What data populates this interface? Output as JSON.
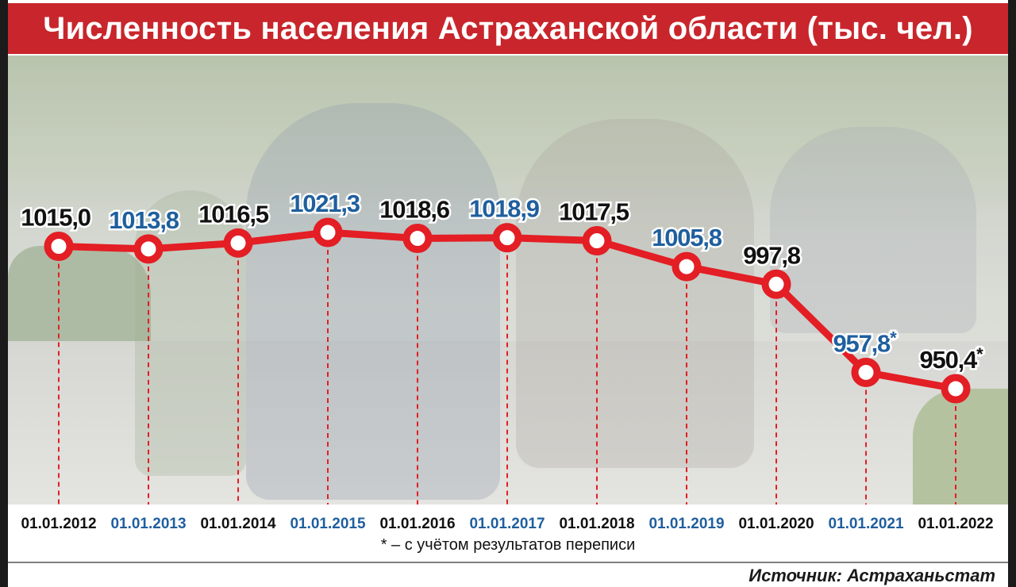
{
  "title": "Численность населения Астраханской области (тыс. чел.)",
  "footnote": "* – с учётом результатов переписи",
  "source": "Источник: Астраханьстат",
  "colors": {
    "title_bg": "#c8262c",
    "line": "#e31e24",
    "label_dark": "#111111",
    "label_blue": "#1f5f9e"
  },
  "chart_data": {
    "type": "line",
    "title": "Численность населения Астраханской области (тыс. чел.)",
    "categories": [
      "01.01.2012",
      "01.01.2013",
      "01.01.2014",
      "01.01.2015",
      "01.01.2016",
      "01.01.2017",
      "01.01.2018",
      "01.01.2019",
      "01.01.2020",
      "01.01.2021",
      "01.01.2022"
    ],
    "values": [
      1015.0,
      1013.8,
      1016.5,
      1021.3,
      1018.6,
      1018.9,
      1017.5,
      1005.8,
      997.8,
      957.8,
      950.4
    ],
    "value_labels": [
      "1015,0",
      "1013,8",
      "1016,5",
      "1021,3",
      "1018,6",
      "1018,9",
      "1017,5",
      "1005,8",
      "997,8",
      "957,8",
      "950,4"
    ],
    "label_suffix": [
      "",
      "",
      "",
      "",
      "",
      "",
      "",
      "",
      "",
      "*",
      "*"
    ],
    "label_color": [
      "dark",
      "blue",
      "dark",
      "blue",
      "dark",
      "blue",
      "dark",
      "blue",
      "dark",
      "blue",
      "dark"
    ],
    "xlabel": "",
    "ylabel": "",
    "grid": false,
    "legend": "none"
  }
}
